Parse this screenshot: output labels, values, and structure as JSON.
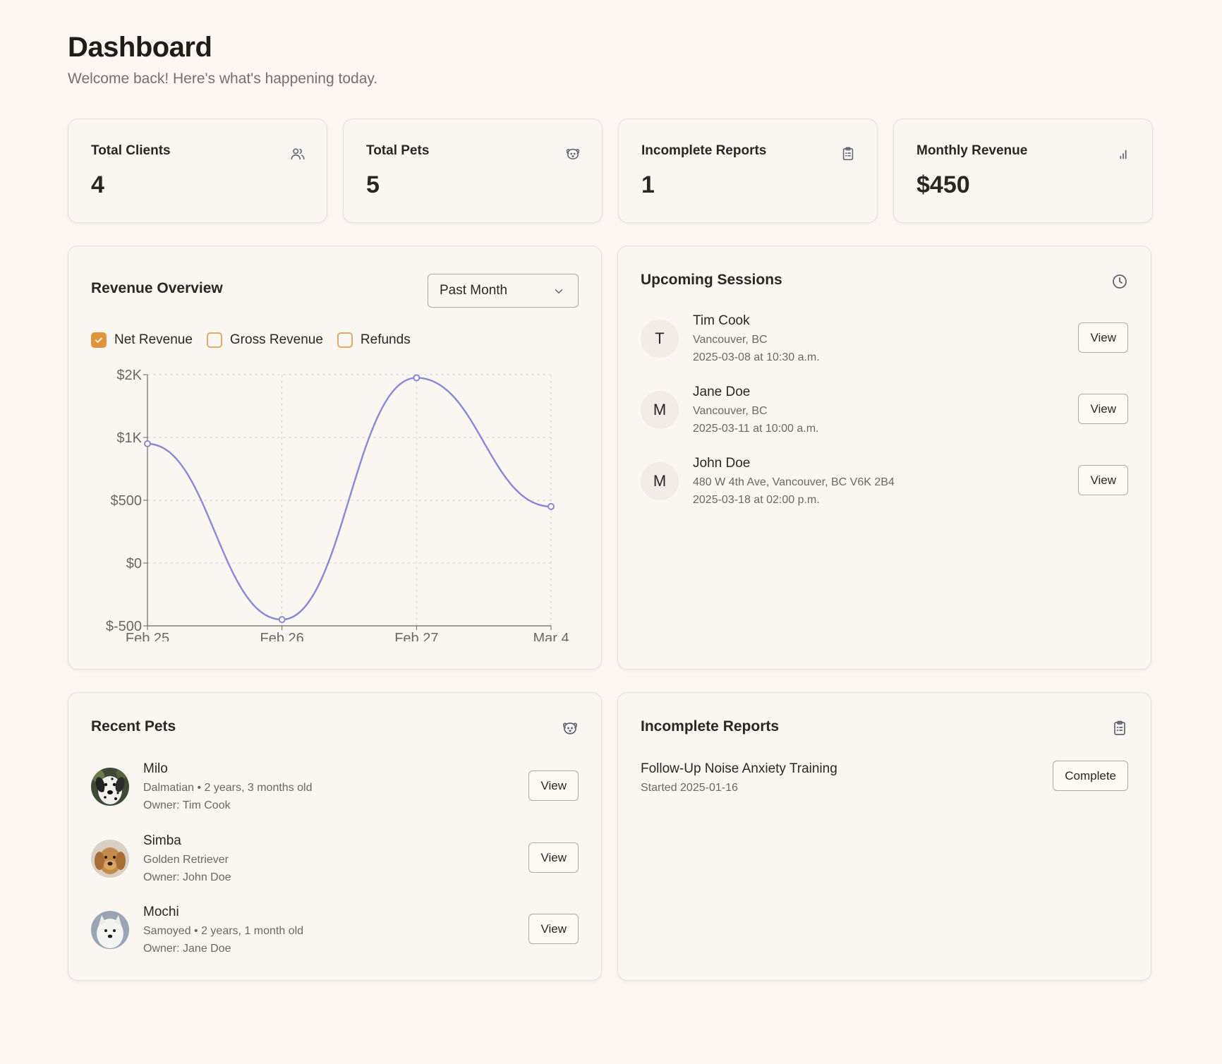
{
  "header": {
    "title": "Dashboard",
    "subtitle": "Welcome back! Here's what's happening today."
  },
  "stats": [
    {
      "label": "Total Clients",
      "value": "4",
      "icon": "users-icon"
    },
    {
      "label": "Total Pets",
      "value": "5",
      "icon": "paw-icon"
    },
    {
      "label": "Incomplete Reports",
      "value": "1",
      "icon": "clipboard-icon"
    },
    {
      "label": "Monthly Revenue",
      "value": "$450",
      "icon": "bar-chart-icon"
    }
  ],
  "revenue": {
    "title": "Revenue Overview",
    "period_selected": "Past Month",
    "legend": [
      {
        "label": "Net Revenue",
        "checked": true
      },
      {
        "label": "Gross Revenue",
        "checked": false
      },
      {
        "label": "Refunds",
        "checked": false
      }
    ]
  },
  "chart_data": {
    "type": "line",
    "title": "",
    "xlabel": "",
    "ylabel": "",
    "x": [
      "Feb 25",
      "Feb 26",
      "Feb 27",
      "Mar 4"
    ],
    "y_ticks": [
      "$-500",
      "$0",
      "$500",
      "$1K",
      "$2K"
    ],
    "series": [
      {
        "name": "Net Revenue",
        "values": [
          950,
          -450,
          1950,
          450
        ],
        "color": "#8a86d8"
      }
    ],
    "grid": true
  },
  "sessions": {
    "title": "Upcoming Sessions",
    "icon": "clock-icon",
    "items": [
      {
        "initial": "T",
        "name": "Tim Cook",
        "location": "Vancouver, BC",
        "time": "2025-03-08 at 10:30 a.m.",
        "action": "View"
      },
      {
        "initial": "M",
        "name": "Jane Doe",
        "location": "Vancouver, BC",
        "time": "2025-03-11 at 10:00 a.m.",
        "action": "View"
      },
      {
        "initial": "M",
        "name": "John Doe",
        "location": "480 W 4th Ave, Vancouver, BC V6K 2B4",
        "time": "2025-03-18 at 02:00 p.m.",
        "action": "View"
      }
    ]
  },
  "pets": {
    "title": "Recent Pets",
    "icon": "paw-icon",
    "items": [
      {
        "name": "Milo",
        "details": "Dalmatian • 2 years, 3 months old",
        "owner": "Owner: Tim Cook",
        "action": "View"
      },
      {
        "name": "Simba",
        "details": "Golden Retriever",
        "owner": "Owner: John Doe",
        "action": "View"
      },
      {
        "name": "Mochi",
        "details": "Samoyed • 2 years, 1 month old",
        "owner": "Owner: Jane Doe",
        "action": "View"
      }
    ]
  },
  "reports": {
    "title": "Incomplete Reports",
    "icon": "clipboard-icon",
    "items": [
      {
        "name": "Follow-Up Noise Anxiety Training",
        "started": "Started 2025-01-16",
        "action": "Complete"
      }
    ]
  },
  "colors": {
    "background": "#fdf7f1",
    "card": "#faf7f3",
    "accent": "#e0953c",
    "line": "#8a86d8"
  }
}
